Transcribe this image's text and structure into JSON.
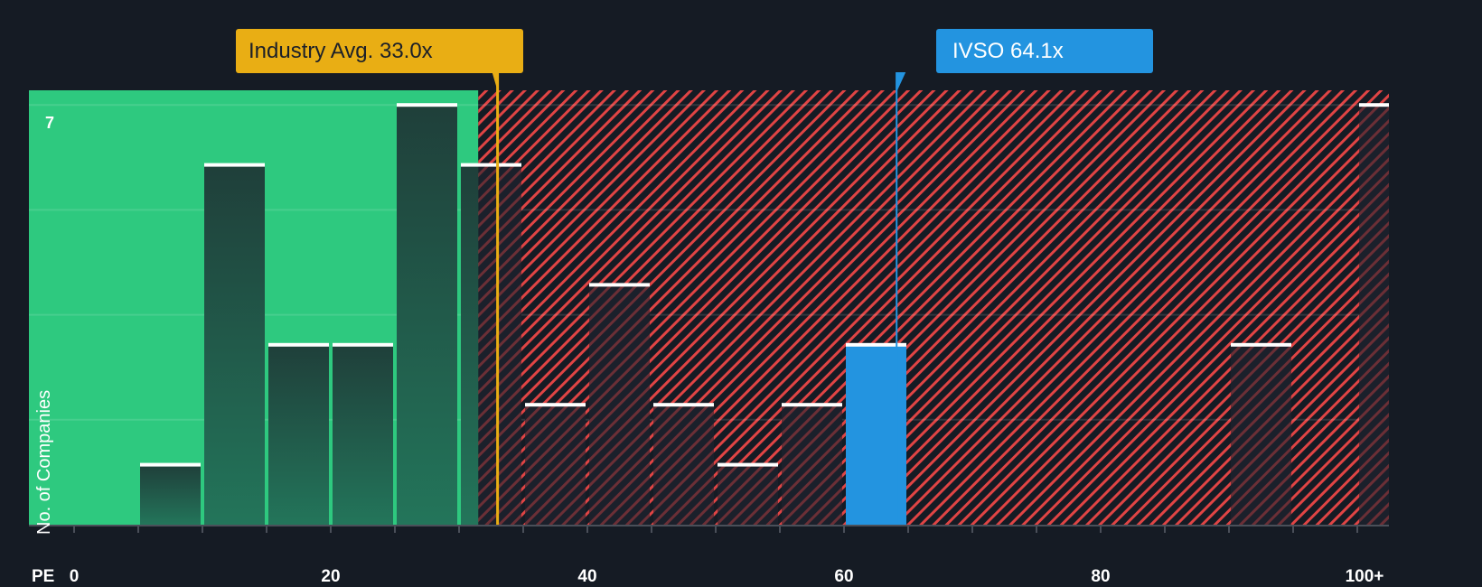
{
  "chart_data": {
    "type": "bar",
    "title": "",
    "xlabel": "PE",
    "ylabel": "No. of Companies",
    "x_tick_labels": [
      "0",
      "20",
      "40",
      "60",
      "80",
      "100+"
    ],
    "x_tick_values": [
      0,
      20,
      40,
      60,
      80,
      100
    ],
    "y_tick_labels": [
      "7"
    ],
    "ylim": [
      0,
      7
    ],
    "xlim": [
      0,
      103
    ],
    "grid": true,
    "bin_width": 5,
    "categories": [
      "0-5",
      "5-10",
      "10-15",
      "15-20",
      "20-25",
      "25-30",
      "30-35",
      "35-40",
      "40-45",
      "45-50",
      "50-55",
      "55-60",
      "60-65",
      "65-70",
      "70-75",
      "75-80",
      "80-85",
      "85-90",
      "90-95",
      "95-100",
      "100+"
    ],
    "values": [
      0,
      1,
      6,
      3,
      3,
      7,
      6,
      2,
      4,
      2,
      1,
      2,
      3,
      0,
      0,
      0,
      0,
      0,
      3,
      0,
      7
    ],
    "highlight_bin": "60-65",
    "annotations": [
      {
        "label": "Industry Avg. 33.0x",
        "value": 33.0,
        "color": "#e9ae14"
      },
      {
        "label": "IVSO 64.1x",
        "value": 64.1,
        "color": "#2394e0"
      }
    ],
    "regions": [
      {
        "name": "below-average",
        "from": 0,
        "to": 31.5,
        "color": "#2ec97f"
      },
      {
        "name": "above-average",
        "from": 31.5,
        "to": 103,
        "color": "#e04040",
        "pattern": "diagonal-hatch"
      }
    ]
  },
  "labels": {
    "industry_avg": "Industry Avg. 33.0x",
    "company": "IVSO 64.1x",
    "y_axis": "No. of Companies",
    "y_max": "7",
    "x_axis": "PE",
    "x_ticks": [
      "0",
      "20",
      "40",
      "60",
      "80",
      "100+"
    ]
  },
  "colors": {
    "background": "#151b24",
    "green_region": "#2ec97f",
    "green_bar": "#1f4a3f",
    "hatch": "#e04444",
    "company_bar": "#2394e0",
    "industry_line": "#e9ae14",
    "bar_cap": "#ffffff"
  }
}
